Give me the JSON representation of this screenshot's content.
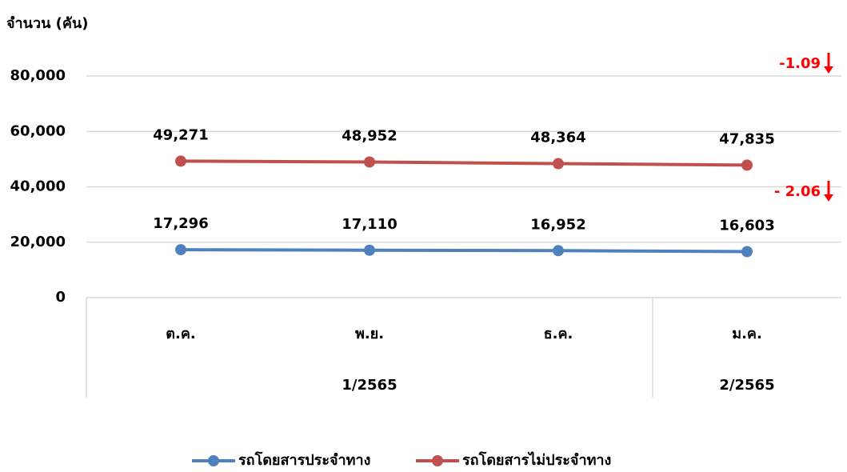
{
  "chart_data": {
    "type": "line",
    "y_axis_label": "จำนวน (คัน)",
    "categories": [
      "ต.ค.",
      "พ.ย.",
      "ธ.ค.",
      "ม.ค."
    ],
    "category_groups": [
      "1/2565",
      "1/2565",
      "1/2565",
      "2/2565"
    ],
    "ylim": [
      0,
      80000
    ],
    "yticks": [
      0,
      {
        "value": 20000,
        "label": "20,000"
      },
      {
        "value": 40000,
        "label": "40,000"
      },
      {
        "value": 60000,
        "label": "60,000"
      },
      {
        "value": 80000,
        "label": "80,000"
      }
    ],
    "grid": true,
    "legend": "bottom",
    "series": [
      {
        "name": "รถโดยสารประจำทาง",
        "color": "#4f81bd",
        "values": [
          17296,
          17110,
          16952,
          16603
        ],
        "value_labels": [
          "17,296",
          "17,110",
          "16,952",
          "16,603"
        ]
      },
      {
        "name": "รถโดยสารไม่ประจำทาง",
        "color": "#c0504d",
        "values": [
          49271,
          48952,
          48364,
          47835
        ],
        "value_labels": [
          "49,271",
          "48,952",
          "48,364",
          "47,835"
        ]
      }
    ],
    "annotations": [
      {
        "text": "-1.09",
        "color": "#ff0000"
      },
      {
        "text": "- 2.06",
        "color": "#ff0000"
      }
    ]
  }
}
